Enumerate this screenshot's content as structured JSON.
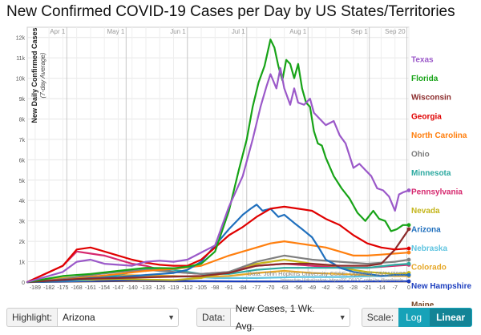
{
  "title": "New Confirmed COVID-19 Cases per Day by US States/Territories",
  "source_line1": "Data: John Hopkins University CSSE; Updated: 09/21/2020",
  "source_line2": "Interactive Visualization: https://91-DIVOC.com/ by @profwade_",
  "controls": {
    "highlight_label": "Highlight:",
    "highlight_value": "Arizona",
    "data_label": "Data:",
    "data_value": "New Cases, 1 Wk. Avg.",
    "scale_label": "Scale:",
    "log_label": "Log",
    "linear_label": "Linear"
  },
  "chart_data": {
    "type": "line",
    "title": "New Confirmed COVID-19 Cases per Day by US States/Territories",
    "ylabel": "New Daily Confirmed Cases",
    "ylabel_sub": "(7-day Average)",
    "ylim": [
      0,
      12500
    ],
    "y_ticks": [
      0,
      1000,
      2000,
      3000,
      4000,
      5000,
      6000,
      7000,
      8000,
      9000,
      10000,
      11000,
      12000
    ],
    "y_tick_labels": [
      "0",
      "1k",
      "2k",
      "3k",
      "4k",
      "5k",
      "6k",
      "7k",
      "8k",
      "9k",
      "10k",
      "11k",
      "12k"
    ],
    "xlim": [
      -193,
      0
    ],
    "x_ticks": [
      -189,
      -182,
      -175,
      -168,
      -161,
      -154,
      -147,
      -140,
      -133,
      -126,
      -119,
      -112,
      -105,
      -98,
      -91,
      -84,
      -77,
      -70,
      -63,
      -56,
      -49,
      -42,
      -35,
      -28,
      -21,
      -14,
      -7,
      0
    ],
    "month_markers": [
      {
        "label": "Apr 1",
        "x": -173
      },
      {
        "label": "May 1",
        "x": -143
      },
      {
        "label": "Jun 1",
        "x": -112
      },
      {
        "label": "Jul 1",
        "x": -82
      },
      {
        "label": "Aug 1",
        "x": -51
      },
      {
        "label": "Sep 1",
        "x": -20
      },
      {
        "label": "Sep 20",
        "x": -1
      }
    ],
    "grid": true,
    "legend": "right-end labels",
    "series": [
      {
        "name": "Texas",
        "color": "#9b59c9",
        "x": [
          -193,
          -175,
          -168,
          -161,
          -154,
          -147,
          -140,
          -133,
          -126,
          -119,
          -112,
          -105,
          -98,
          -91,
          -84,
          -79,
          -75,
          -72,
          -70,
          -67,
          -65,
          -63,
          -60,
          -58,
          -56,
          -53,
          -50,
          -48,
          -45,
          -42,
          -38,
          -35,
          -32,
          -28,
          -25,
          -22,
          -19,
          -16,
          -13,
          -10,
          -7,
          -5,
          -3,
          0
        ],
        "values": [
          0,
          500,
          1000,
          1100,
          900,
          850,
          800,
          1000,
          1050,
          1000,
          1100,
          1450,
          1800,
          3700,
          5200,
          7000,
          8600,
          9600,
          10200,
          9500,
          10500,
          9500,
          8700,
          9500,
          8800,
          8700,
          9000,
          8300,
          8000,
          7700,
          7900,
          7200,
          6800,
          5600,
          5800,
          5500,
          5200,
          4600,
          4500,
          4200,
          3500,
          4300,
          4400,
          4500
        ]
      },
      {
        "name": "Florida",
        "color": "#17a317",
        "x": [
          -193,
          -175,
          -161,
          -147,
          -133,
          -119,
          -112,
          -105,
          -98,
          -91,
          -86,
          -82,
          -79,
          -76,
          -73,
          -70,
          -68,
          -66,
          -64,
          -62,
          -60,
          -58,
          -56,
          -54,
          -52,
          -50,
          -48,
          -46,
          -44,
          -42,
          -38,
          -34,
          -30,
          -26,
          -22,
          -18,
          -15,
          -12,
          -9,
          -6,
          -3,
          0
        ],
        "values": [
          0,
          300,
          400,
          550,
          700,
          680,
          750,
          900,
          1500,
          3500,
          5500,
          7000,
          8600,
          9800,
          10600,
          11900,
          11500,
          10600,
          9900,
          10900,
          10700,
          10000,
          10700,
          9500,
          8800,
          8600,
          7400,
          6800,
          6700,
          6100,
          5200,
          4600,
          4100,
          3400,
          3000,
          3500,
          3100,
          3000,
          2500,
          2600,
          2800,
          2800
        ]
      },
      {
        "name": "Georgia",
        "color": "#e00000",
        "x": [
          -193,
          -175,
          -168,
          -161,
          -154,
          -147,
          -140,
          -133,
          -126,
          -119,
          -112,
          -105,
          -98,
          -91,
          -84,
          -77,
          -70,
          -63,
          -56,
          -49,
          -42,
          -35,
          -28,
          -21,
          -14,
          -7,
          0
        ],
        "values": [
          0,
          800,
          1600,
          1700,
          1500,
          1300,
          1100,
          950,
          850,
          800,
          800,
          1100,
          1700,
          2300,
          2700,
          3200,
          3600,
          3700,
          3600,
          3500,
          3100,
          2800,
          2300,
          1900,
          1700,
          1600,
          1650
        ]
      },
      {
        "name": "Wisconsin",
        "color": "#8b2b2b",
        "x": [
          -193,
          -168,
          -147,
          -126,
          -105,
          -91,
          -77,
          -63,
          -49,
          -35,
          -21,
          -14,
          -7,
          0
        ],
        "values": [
          0,
          150,
          200,
          250,
          300,
          450,
          800,
          900,
          900,
          800,
          800,
          900,
          1600,
          2600
        ]
      },
      {
        "name": "Arizona",
        "color": "#1f6fbd",
        "x": [
          -193,
          -175,
          -161,
          -147,
          -133,
          -119,
          -112,
          -105,
          -98,
          -91,
          -87,
          -84,
          -80,
          -77,
          -74,
          -70,
          -66,
          -63,
          -58,
          -54,
          -49,
          -45,
          -42,
          -38,
          -35,
          -28,
          -21,
          -14,
          -7,
          0
        ],
        "values": [
          0,
          60,
          200,
          250,
          350,
          450,
          600,
          1000,
          1800,
          2600,
          3000,
          3300,
          3600,
          3800,
          3500,
          3600,
          3200,
          3300,
          2900,
          2600,
          2200,
          1600,
          1100,
          900,
          700,
          500,
          400,
          300,
          350,
          350
        ]
      },
      {
        "name": "North Carolina",
        "color": "#ff7f0e",
        "x": [
          -193,
          -175,
          -161,
          -147,
          -133,
          -119,
          -105,
          -91,
          -77,
          -70,
          -63,
          -56,
          -49,
          -42,
          -35,
          -28,
          -21,
          -14,
          -7,
          0
        ],
        "values": [
          0,
          100,
          250,
          400,
          550,
          650,
          800,
          1300,
          1700,
          1900,
          2000,
          1900,
          1800,
          1700,
          1500,
          1300,
          1300,
          1350,
          1400,
          1450
        ]
      },
      {
        "name": "Ohio",
        "color": "#7f7f7f",
        "x": [
          -193,
          -175,
          -161,
          -147,
          -133,
          -119,
          -105,
          -91,
          -77,
          -63,
          -49,
          -35,
          -21,
          -7,
          0
        ],
        "values": [
          0,
          150,
          350,
          500,
          600,
          500,
          400,
          500,
          1000,
          1300,
          1100,
          1000,
          900,
          1000,
          1100
        ]
      },
      {
        "name": "Minnesota",
        "color": "#2ca9a0",
        "x": [
          -193,
          -175,
          -161,
          -147,
          -133,
          -119,
          -105,
          -91,
          -77,
          -63,
          -49,
          -35,
          -21,
          -7,
          0
        ],
        "values": [
          0,
          50,
          150,
          350,
          650,
          600,
          400,
          400,
          600,
          700,
          700,
          700,
          700,
          850,
          900
        ]
      },
      {
        "name": "Pennsylvania",
        "color": "#d6286e",
        "x": [
          -193,
          -175,
          -168,
          -161,
          -154,
          -147,
          -140,
          -133,
          -126,
          -119,
          -105,
          -91,
          -77,
          -63,
          -49,
          -35,
          -21,
          -7,
          0
        ],
        "values": [
          0,
          800,
          1500,
          1400,
          1300,
          1100,
          900,
          800,
          600,
          500,
          400,
          500,
          800,
          900,
          800,
          700,
          700,
          800,
          850
        ]
      },
      {
        "name": "Nevada",
        "color": "#c4b51b",
        "x": [
          -193,
          -175,
          -147,
          -119,
          -105,
          -91,
          -77,
          -63,
          -49,
          -35,
          -21,
          -7,
          0
        ],
        "values": [
          0,
          80,
          150,
          100,
          200,
          500,
          900,
          1100,
          900,
          700,
          500,
          400,
          450
        ]
      },
      {
        "name": "Colorado",
        "color": "#e6a82a",
        "x": [
          -193,
          -175,
          -147,
          -119,
          -105,
          -91,
          -77,
          -63,
          -49,
          -35,
          -21,
          -7,
          0
        ],
        "values": [
          0,
          200,
          350,
          300,
          250,
          300,
          450,
          550,
          450,
          400,
          350,
          300,
          300
        ]
      },
      {
        "name": "Nebraska",
        "color": "#5fc4e0",
        "x": [
          -193,
          -161,
          -140,
          -119,
          -98,
          -77,
          -56,
          -35,
          -14,
          0
        ],
        "values": [
          0,
          100,
          250,
          300,
          200,
          200,
          250,
          250,
          300,
          350
        ]
      },
      {
        "name": "New Hampshire",
        "color": "#1d3fbf",
        "x": [
          -193,
          -161,
          -140,
          -119,
          -98,
          -77,
          -56,
          -35,
          -14,
          0
        ],
        "values": [
          0,
          50,
          90,
          60,
          40,
          30,
          30,
          30,
          40,
          40
        ]
      },
      {
        "name": "Maine",
        "color": "#7a4a2a",
        "x": [
          -193,
          -161,
          -140,
          -119,
          -98,
          -77,
          -56,
          -35,
          -14,
          0
        ],
        "values": [
          0,
          30,
          50,
          40,
          40,
          30,
          30,
          30,
          30,
          30
        ]
      }
    ]
  }
}
